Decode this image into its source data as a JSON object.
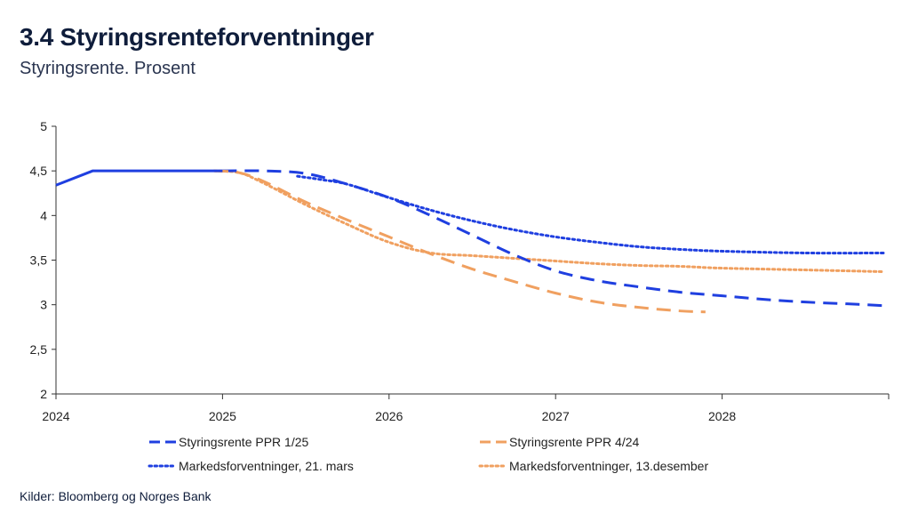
{
  "header": {
    "title": "3.4 Styringsrenteforventninger",
    "subtitle": "Styringsrente. Prosent"
  },
  "footer": {
    "source": "Kilder: Bloomberg og Norges Bank"
  },
  "colors": {
    "blue": "#1f3fe0",
    "orange": "#f0a060"
  },
  "chart_data": {
    "type": "line",
    "title": "3.4 Styringsrenteforventninger",
    "subtitle": "Styringsrente. Prosent",
    "xlabel": "",
    "ylabel": "",
    "xlim": [
      2024.0,
      2029.0
    ],
    "ylim": [
      2,
      5
    ],
    "x_ticks": [
      2024,
      2025,
      2026,
      2027,
      2028
    ],
    "x_tick_labels": [
      "2024",
      "2025",
      "2026",
      "2027",
      "2028"
    ],
    "y_ticks": [
      2,
      2.5,
      3,
      3.5,
      4,
      4.5,
      5
    ],
    "y_tick_labels": [
      "2",
      "2,5",
      "3",
      "3,5",
      "4",
      "4,5",
      "5"
    ],
    "grid": false,
    "legend_position": "bottom",
    "series": [
      {
        "name": "Styringsrente",
        "style": "solid",
        "color": "#1f3fe0",
        "in_legend": false,
        "x": [
          2024.0,
          2024.22,
          2025.0
        ],
        "y": [
          4.34,
          4.5,
          4.5
        ]
      },
      {
        "name": "Styringsrente PPR 1/25",
        "style": "dashed",
        "color": "#1f3fe0",
        "in_legend": true,
        "x": [
          2025.0,
          2025.25,
          2025.5,
          2025.75,
          2026.0,
          2026.25,
          2026.5,
          2026.75,
          2027.0,
          2027.25,
          2027.5,
          2027.75,
          2028.0,
          2028.25,
          2028.5,
          2028.75,
          2028.97
        ],
        "y": [
          4.5,
          4.5,
          4.47,
          4.35,
          4.2,
          4.0,
          3.78,
          3.56,
          3.38,
          3.27,
          3.2,
          3.14,
          3.1,
          3.06,
          3.03,
          3.01,
          2.99
        ]
      },
      {
        "name": "Styringsrente PPR 4/24",
        "style": "dashed",
        "color": "#f0a060",
        "in_legend": true,
        "x": [
          2024.95,
          2025.1,
          2025.25,
          2025.5,
          2025.75,
          2026.0,
          2026.25,
          2026.5,
          2026.75,
          2027.0,
          2027.25,
          2027.5,
          2027.75,
          2027.9
        ],
        "y": [
          4.5,
          4.48,
          4.38,
          4.15,
          3.95,
          3.76,
          3.57,
          3.4,
          3.26,
          3.13,
          3.03,
          2.97,
          2.93,
          2.92
        ]
      },
      {
        "name": "Markedsforventninger, 21. mars",
        "style": "dotted",
        "color": "#1f3fe0",
        "in_legend": true,
        "x": [
          2025.45,
          2025.6,
          2025.75,
          2026.0,
          2026.25,
          2026.5,
          2026.75,
          2027.0,
          2027.25,
          2027.5,
          2027.75,
          2028.0,
          2028.5,
          2028.97
        ],
        "y": [
          4.44,
          4.4,
          4.35,
          4.2,
          4.06,
          3.94,
          3.84,
          3.76,
          3.7,
          3.65,
          3.62,
          3.6,
          3.58,
          3.58
        ]
      },
      {
        "name": "Markedsforventninger, 13.desember",
        "style": "dotted",
        "color": "#f0a060",
        "in_legend": true,
        "x": [
          2024.95,
          2025.1,
          2025.25,
          2025.5,
          2025.75,
          2026.0,
          2026.25,
          2026.5,
          2026.75,
          2027.0,
          2027.25,
          2027.5,
          2027.75,
          2028.0,
          2028.5,
          2028.97
        ],
        "y": [
          4.5,
          4.48,
          4.36,
          4.12,
          3.9,
          3.7,
          3.58,
          3.55,
          3.52,
          3.49,
          3.46,
          3.44,
          3.43,
          3.41,
          3.39,
          3.37
        ]
      }
    ]
  }
}
